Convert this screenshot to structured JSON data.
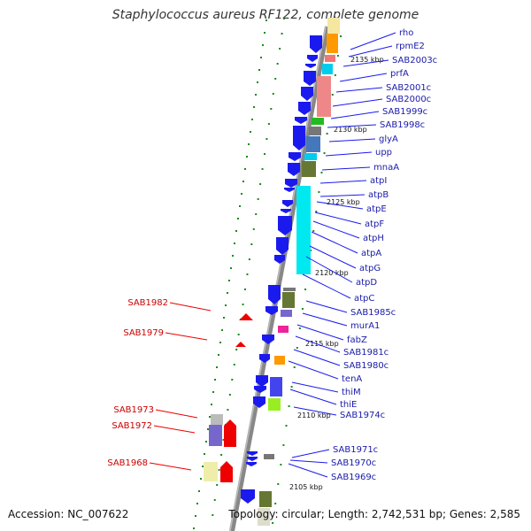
{
  "title": "Staphylococcus aureus RF122, complete genome",
  "footer": {
    "accession": "Accession: NC_007622",
    "summary": "Topology: circular; Length: 2,742,531 bp; Genes: 2,585"
  },
  "colors": {
    "blue_gene": "#1a1aee",
    "red_gene": "#ee0000",
    "label_blue": "#1a1aaa",
    "label_red": "#cc0000",
    "backbone": "#888888",
    "tick_green": "#1a8a1a"
  },
  "scale_labels": [
    {
      "text": "2135 kbp"
    },
    {
      "text": "2130 kbp"
    },
    {
      "text": "2125 kbp"
    },
    {
      "text": "2120 kbp"
    },
    {
      "text": "2115 kbp"
    },
    {
      "text": "2110 kbp"
    },
    {
      "text": "2105 kbp"
    }
  ],
  "right_labels": [
    "rho",
    "rpmE2",
    "SAB2003c",
    "prfA",
    "SAB2001c",
    "SAB2000c",
    "SAB1999c",
    "SAB1998c",
    "glyA",
    "upp",
    "mnaA",
    "atpI",
    "atpB",
    "atpE",
    "atpF",
    "atpH",
    "atpA",
    "atpG",
    "atpD",
    "atpC",
    "SAB1985c",
    "murA1",
    "fabZ",
    "SAB1981c",
    "SAB1980c",
    "tenA",
    "thiM",
    "thiE",
    "SAB1974c",
    "SAB1971c",
    "SAB1970c",
    "SAB1969c"
  ],
  "left_labels": [
    "SAB1982",
    "SAB1979",
    "SAB1973",
    "SAB1972",
    "SAB1968"
  ]
}
